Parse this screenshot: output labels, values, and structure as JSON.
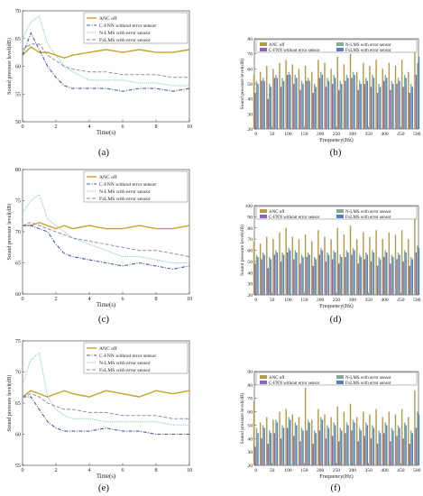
{
  "labels": {
    "time_axis": "Time(s)",
    "freq_axis": "Frequency(Hz)",
    "spl_axis": "Sound pressure level(dB)"
  },
  "legend_time": [
    "ANC off",
    "C-FNN without error sensor",
    "N-LMS with error sensor",
    "FxLMS with error sensor"
  ],
  "legend_freq": [
    "ANC off",
    "N-LMS with error sensor",
    "C-FNN without error sensor",
    "FxLMS with error sensor"
  ],
  "colors": {
    "anc_off": "#c8a326",
    "cfnn": "#4b5aa8",
    "nlms": "#89c9bf",
    "fxlms": "#8b8fb3",
    "bar_anc": "#b59a45",
    "bar_cfnn": "#8f63b8",
    "bar_nlms": "#7fae94",
    "bar_fxlms": "#5a7fc0"
  },
  "chart_data": [
    {
      "id": "a",
      "caption": "(a)",
      "type": "line",
      "xlabel": "Time(s)",
      "ylabel": "Sound pressure level(dB)",
      "xlim": [
        0,
        10
      ],
      "ylim": [
        50,
        70
      ],
      "xticks": [
        0,
        2,
        4,
        6,
        8,
        10
      ],
      "yticks": [
        50,
        55,
        60,
        65,
        70
      ],
      "x": [
        0,
        0.5,
        1,
        1.5,
        2,
        2.5,
        3,
        4,
        5,
        6,
        7,
        8,
        9,
        10
      ],
      "series": [
        {
          "name": "ANC off",
          "key": "anc_off",
          "values": [
            62,
            63.5,
            62.5,
            62.5,
            62,
            61.5,
            62,
            62.5,
            63,
            62.5,
            63,
            62.5,
            62.5,
            63
          ]
        },
        {
          "name": "C-FNN without error sensor",
          "key": "cfnn",
          "values": [
            62,
            66,
            63,
            60,
            58,
            56.5,
            56,
            56,
            56,
            55.5,
            56,
            56,
            55.5,
            56
          ]
        },
        {
          "name": "N-LMS with error sensor",
          "key": "nlms",
          "values": [
            65,
            68,
            69,
            64,
            62,
            60,
            59,
            57.5,
            57.5,
            57.5,
            57,
            57,
            56.5,
            56.5
          ]
        },
        {
          "name": "FxLMS with error sensor",
          "key": "fxlms",
          "values": [
            63,
            64,
            64,
            62,
            61,
            60,
            59.5,
            59,
            59,
            58.5,
            58.5,
            58.5,
            58,
            58
          ]
        }
      ]
    },
    {
      "id": "b",
      "caption": "(b)",
      "type": "bar",
      "xlabel": "Frequency(Hz)",
      "ylabel": "Sound pressure level(dB)",
      "xlim": [
        -5,
        505
      ],
      "ylim": [
        20,
        80
      ],
      "xticks": [
        0,
        50,
        100,
        150,
        200,
        250,
        300,
        350,
        400,
        450,
        500
      ],
      "yticks": [
        20,
        30,
        40,
        50,
        60,
        70,
        80
      ],
      "x": [
        0,
        20,
        40,
        60,
        80,
        100,
        120,
        140,
        160,
        180,
        200,
        220,
        240,
        260,
        280,
        300,
        320,
        340,
        360,
        380,
        400,
        420,
        440,
        460,
        480,
        500
      ],
      "series": [
        {
          "name": "ANC off",
          "key": "bar_anc",
          "values": [
            56,
            58,
            62,
            60,
            64,
            66,
            63,
            60,
            62,
            58,
            66,
            64,
            60,
            68,
            63,
            70,
            58,
            64,
            62,
            66,
            60,
            64,
            62,
            66,
            58,
            76
          ]
        },
        {
          "name": "C-FNN without error sensor",
          "key": "bar_cfnn",
          "values": [
            44,
            52,
            40,
            54,
            48,
            56,
            50,
            46,
            52,
            44,
            54,
            48,
            50,
            46,
            52,
            54,
            46,
            50,
            48,
            44,
            52,
            46,
            50,
            48,
            44,
            56
          ]
        },
        {
          "name": "N-LMS with error sensor",
          "key": "bar_nlms",
          "values": [
            52,
            54,
            50,
            56,
            54,
            58,
            56,
            52,
            54,
            50,
            58,
            54,
            56,
            52,
            56,
            58,
            52,
            54,
            56,
            50,
            56,
            52,
            54,
            56,
            50,
            64
          ]
        },
        {
          "name": "FxLMS with error sensor",
          "key": "bar_fxlms",
          "values": [
            50,
            52,
            48,
            54,
            52,
            56,
            54,
            50,
            52,
            48,
            56,
            52,
            54,
            50,
            54,
            56,
            50,
            52,
            54,
            48,
            54,
            50,
            52,
            54,
            48,
            68
          ]
        }
      ]
    },
    {
      "id": "c",
      "caption": "(c)",
      "type": "line",
      "xlabel": "Time(s)",
      "ylabel": "Sound pressure level(dB)",
      "xlim": [
        0,
        10
      ],
      "ylim": [
        60,
        80
      ],
      "xticks": [
        0,
        2,
        4,
        6,
        8,
        10
      ],
      "yticks": [
        60,
        65,
        70,
        75,
        80
      ],
      "x": [
        0,
        0.5,
        1,
        1.5,
        2,
        2.5,
        3,
        4,
        5,
        6,
        7,
        8,
        9,
        10
      ],
      "series": [
        {
          "name": "ANC off",
          "key": "anc_off",
          "values": [
            71,
            71,
            71.5,
            71,
            70.5,
            71,
            70.5,
            71,
            70.5,
            70.5,
            71,
            70.5,
            70.5,
            71
          ]
        },
        {
          "name": "C-FNN without error sensor",
          "key": "cfnn",
          "values": [
            71,
            71,
            70.5,
            70,
            68,
            66.5,
            66,
            65.5,
            65,
            64.5,
            65,
            64.5,
            64,
            64.5
          ]
        },
        {
          "name": "N-LMS with error sensor",
          "key": "nlms",
          "values": [
            73,
            75,
            76,
            72,
            71,
            70,
            69,
            68,
            67,
            66,
            66,
            65.5,
            65,
            65
          ]
        },
        {
          "name": "FxLMS with error sensor",
          "key": "fxlms",
          "values": [
            71,
            71.5,
            71,
            70.5,
            70,
            69.5,
            69,
            68.5,
            68,
            67.5,
            67,
            67,
            66.5,
            66
          ]
        }
      ]
    },
    {
      "id": "d",
      "caption": "(d)",
      "type": "bar",
      "xlabel": "Frequency(Hz)",
      "ylabel": "Sound pressure level(dB)",
      "xlim": [
        -5,
        505
      ],
      "ylim": [
        20,
        100
      ],
      "xticks": [
        0,
        50,
        100,
        150,
        200,
        250,
        300,
        350,
        400,
        450,
        500
      ],
      "yticks": [
        20,
        30,
        40,
        50,
        60,
        70,
        80,
        90,
        100
      ],
      "x": [
        0,
        20,
        40,
        60,
        80,
        100,
        120,
        140,
        160,
        180,
        200,
        220,
        240,
        260,
        280,
        300,
        320,
        340,
        360,
        380,
        400,
        420,
        440,
        460,
        480,
        500
      ],
      "series": [
        {
          "name": "ANC off",
          "key": "bar_anc",
          "values": [
            68,
            66,
            72,
            70,
            76,
            80,
            72,
            70,
            74,
            68,
            78,
            72,
            70,
            80,
            74,
            82,
            70,
            76,
            72,
            78,
            70,
            76,
            74,
            78,
            70,
            90
          ]
        },
        {
          "name": "C-FNN without error sensor",
          "key": "bar_cfnn",
          "values": [
            48,
            52,
            44,
            56,
            50,
            58,
            52,
            48,
            54,
            46,
            56,
            50,
            52,
            48,
            54,
            56,
            48,
            52,
            50,
            46,
            54,
            48,
            52,
            50,
            46,
            58
          ]
        },
        {
          "name": "N-LMS with error sensor",
          "key": "bar_nlms",
          "values": [
            56,
            58,
            54,
            60,
            58,
            62,
            60,
            56,
            58,
            54,
            62,
            58,
            60,
            56,
            60,
            62,
            56,
            58,
            60,
            54,
            60,
            56,
            58,
            60,
            54,
            64
          ]
        },
        {
          "name": "FxLMS with error sensor",
          "key": "bar_fxlms",
          "values": [
            54,
            56,
            52,
            58,
            56,
            60,
            58,
            54,
            56,
            52,
            60,
            56,
            58,
            54,
            58,
            60,
            54,
            56,
            58,
            52,
            58,
            54,
            56,
            58,
            52,
            62
          ]
        }
      ]
    },
    {
      "id": "e",
      "caption": "(e)",
      "type": "line",
      "xlabel": "Time(s)",
      "ylabel": "Sound pressure level(dB)",
      "xlim": [
        0,
        10
      ],
      "ylim": [
        55,
        75
      ],
      "xticks": [
        0,
        2,
        4,
        6,
        8,
        10
      ],
      "yticks": [
        55,
        60,
        65,
        70,
        75
      ],
      "x": [
        0,
        0.5,
        1,
        1.5,
        2,
        2.5,
        3,
        4,
        5,
        6,
        7,
        8,
        9,
        10
      ],
      "series": [
        {
          "name": "ANC off",
          "key": "anc_off",
          "values": [
            66,
            67,
            66.5,
            66,
            66.5,
            67,
            66.5,
            66,
            67,
            66.5,
            66,
            67,
            66.5,
            67
          ]
        },
        {
          "name": "C-FNN without error sensor",
          "key": "cfnn",
          "values": [
            66,
            66,
            64,
            62,
            61,
            60.5,
            60.5,
            60.5,
            61,
            60.5,
            60.5,
            60,
            60,
            60
          ]
        },
        {
          "name": "N-LMS with error sensor",
          "key": "nlms",
          "values": [
            68,
            72,
            73,
            66,
            64,
            63,
            62.5,
            62.5,
            62,
            62,
            62,
            62,
            61.5,
            61.5
          ]
        },
        {
          "name": "FxLMS with error sensor",
          "key": "fxlms",
          "values": [
            66,
            66.5,
            66,
            65,
            64.5,
            64,
            64,
            63.5,
            63.5,
            63,
            63,
            63,
            62.5,
            62.5
          ]
        }
      ]
    },
    {
      "id": "f",
      "caption": "(f)",
      "type": "bar",
      "xlabel": "Frequency(Hz)",
      "ylabel": "Sound pressure level(dB)",
      "xlim": [
        -5,
        505
      ],
      "ylim": [
        20,
        90
      ],
      "xticks": [
        0,
        50,
        100,
        150,
        200,
        250,
        300,
        350,
        400,
        450,
        500
      ],
      "yticks": [
        20,
        30,
        40,
        50,
        60,
        70,
        80,
        90
      ],
      "x": [
        0,
        20,
        40,
        60,
        80,
        100,
        120,
        140,
        160,
        180,
        200,
        220,
        240,
        260,
        280,
        300,
        320,
        340,
        360,
        380,
        400,
        420,
        440,
        460,
        480,
        500
      ],
      "series": [
        {
          "name": "ANC off",
          "key": "bar_anc",
          "values": [
            68,
            52,
            56,
            54,
            60,
            62,
            58,
            56,
            78,
            54,
            62,
            58,
            56,
            64,
            60,
            66,
            56,
            60,
            58,
            62,
            56,
            60,
            58,
            62,
            56,
            76
          ]
        },
        {
          "name": "C-FNN without error sensor",
          "key": "bar_cfnn",
          "values": [
            34,
            40,
            36,
            44,
            40,
            48,
            42,
            38,
            46,
            36,
            46,
            40,
            42,
            38,
            44,
            46,
            38,
            42,
            40,
            36,
            44,
            38,
            42,
            40,
            36,
            48
          ]
        },
        {
          "name": "N-LMS with error sensor",
          "key": "bar_nlms",
          "values": [
            48,
            50,
            46,
            54,
            50,
            56,
            52,
            48,
            54,
            46,
            56,
            50,
            52,
            48,
            52,
            54,
            48,
            52,
            50,
            46,
            52,
            48,
            50,
            52,
            46,
            60
          ]
        },
        {
          "name": "FxLMS with error sensor",
          "key": "bar_fxlms",
          "values": [
            44,
            48,
            44,
            52,
            48,
            54,
            50,
            46,
            52,
            44,
            54,
            48,
            50,
            46,
            50,
            52,
            46,
            50,
            48,
            44,
            50,
            46,
            48,
            50,
            44,
            58
          ]
        }
      ]
    }
  ]
}
